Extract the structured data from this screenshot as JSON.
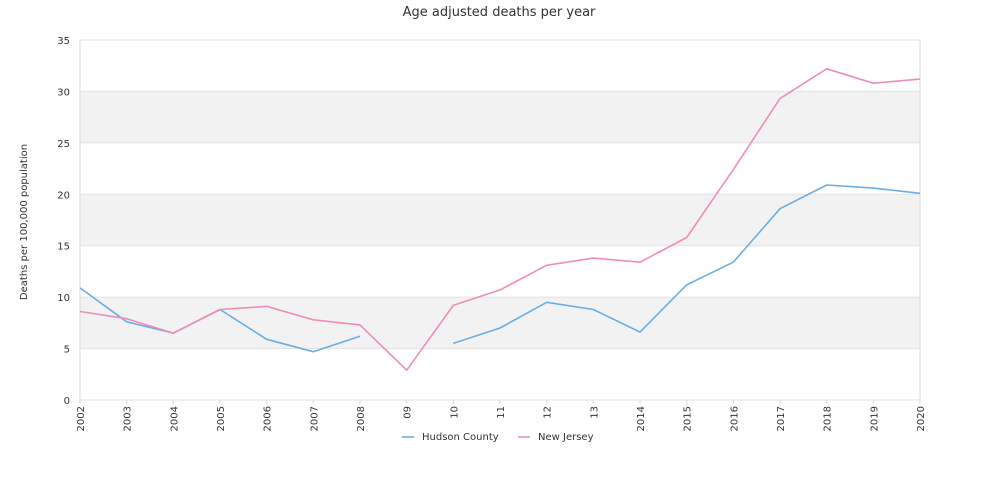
{
  "chart_data": {
    "type": "line",
    "title": "Age adjusted deaths per year",
    "xlabel": "",
    "ylabel": "Deaths per 100,000 population",
    "categories": [
      "2002",
      "2003",
      "2004",
      "2005",
      "2006",
      "2007",
      "2008",
      "09",
      "10",
      "11",
      "12",
      "13",
      "2014",
      "2015",
      "2016",
      "2017",
      "2018",
      "2019",
      "2020"
    ],
    "ylim": [
      0,
      35
    ],
    "yticks": [
      0,
      5,
      10,
      15,
      20,
      25,
      30,
      35
    ],
    "grid": "alternating horizontal bands",
    "legend_position": "bottom-center",
    "series": [
      {
        "name": "Hudson County",
        "color": "#6aaee6",
        "values": [
          10.9,
          7.6,
          6.5,
          8.8,
          5.9,
          4.7,
          6.2,
          null,
          5.5,
          7.0,
          9.5,
          8.8,
          6.6,
          11.2,
          13.4,
          18.6,
          20.9,
          20.6,
          20.1
        ]
      },
      {
        "name": "New Jersey",
        "color": "#f08cbc",
        "values": [
          8.6,
          7.9,
          6.5,
          8.8,
          9.1,
          7.8,
          7.3,
          2.9,
          9.2,
          10.7,
          13.1,
          13.8,
          13.4,
          15.8,
          22.4,
          29.3,
          32.2,
          30.8,
          31.2
        ]
      }
    ]
  }
}
